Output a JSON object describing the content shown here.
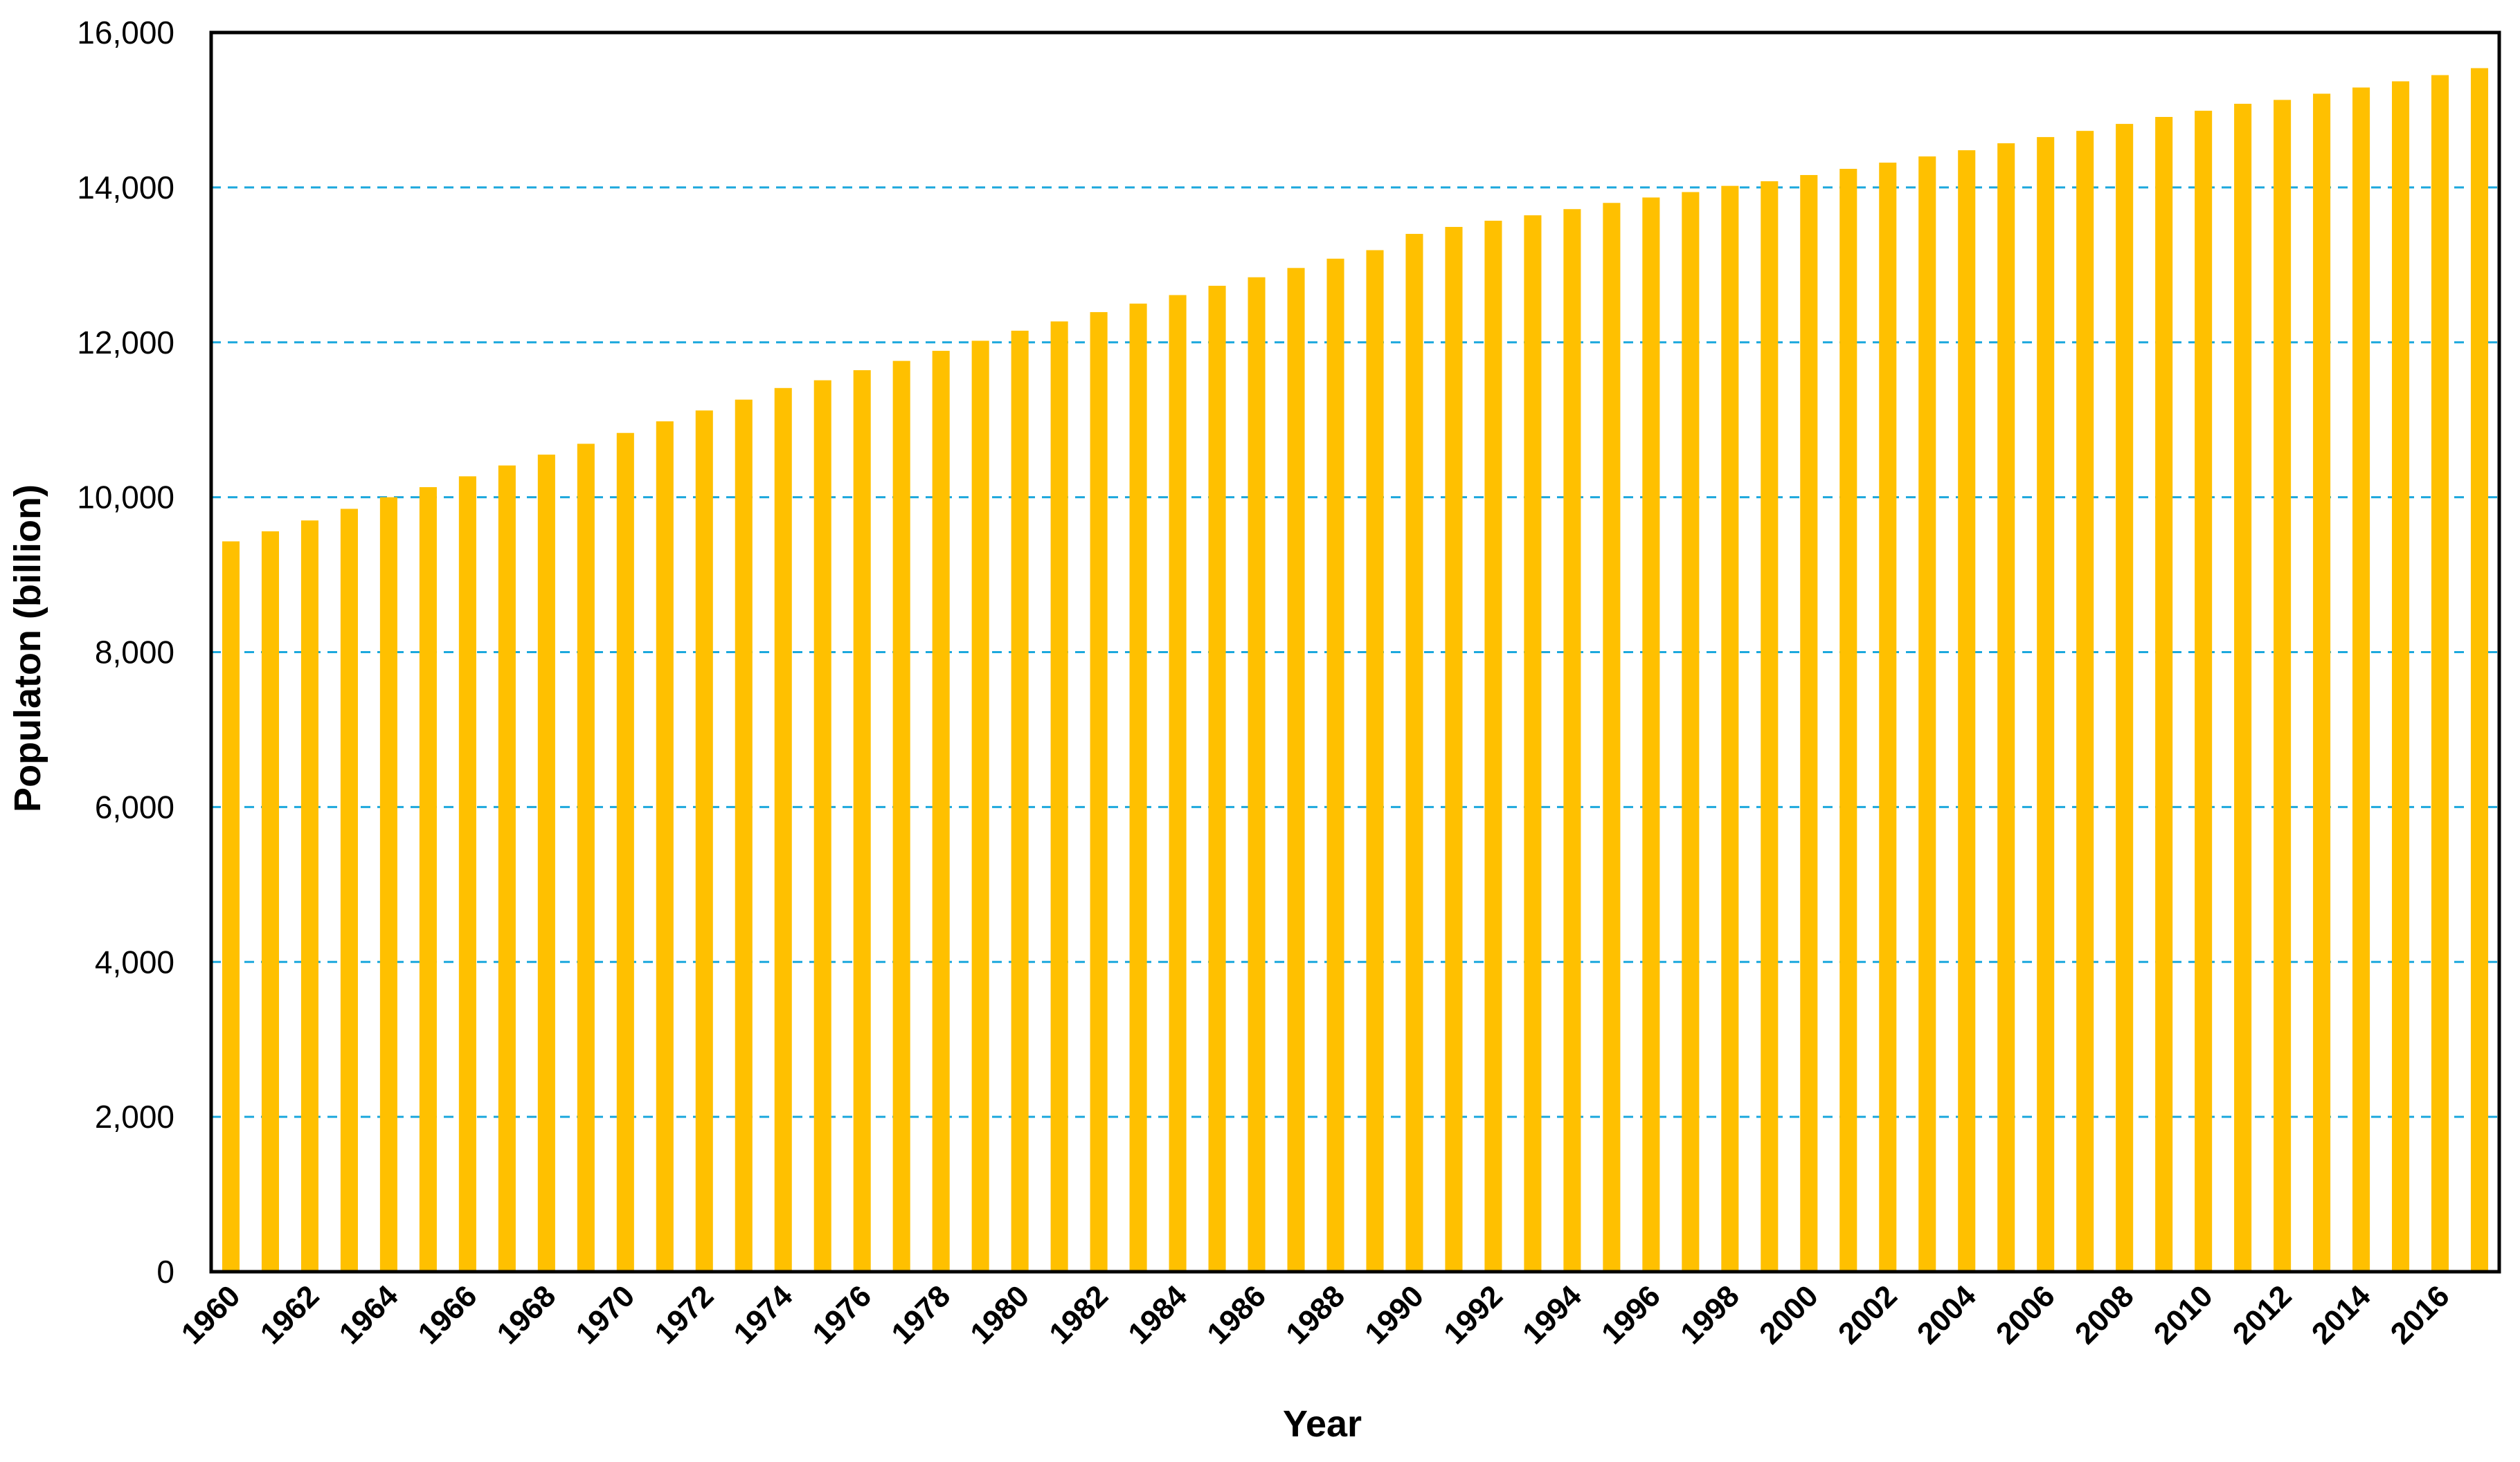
{
  "chart_data": {
    "type": "bar",
    "title": "",
    "xlabel": "Year",
    "ylabel": "Populaton (billion)",
    "ylim": [
      0,
      16000
    ],
    "yticks": [
      0,
      2000,
      4000,
      6000,
      8000,
      10000,
      12000,
      14000,
      16000
    ],
    "ytick_labels": [
      "0",
      "2,000",
      "4,000",
      "6,000",
      "8,000",
      "10,000",
      "12,000",
      "14,000",
      "16,000"
    ],
    "grid": "horizontal dashed",
    "legend": "none",
    "categories": [
      "1960",
      "1961",
      "1962",
      "1963",
      "1964",
      "1965",
      "1966",
      "1967",
      "1968",
      "1969",
      "1970",
      "1971",
      "1972",
      "1973",
      "1974",
      "1975",
      "1976",
      "1977",
      "1978",
      "1979",
      "1980",
      "1981",
      "1982",
      "1983",
      "1984",
      "1985",
      "1986",
      "1987",
      "1988",
      "1989",
      "1990",
      "1991",
      "1992",
      "1993",
      "1994",
      "1995",
      "1996",
      "1997",
      "1998",
      "1999",
      "2000",
      "2001",
      "2002",
      "2003",
      "2004",
      "2005",
      "2006",
      "2007",
      "2008",
      "2009",
      "2010",
      "2011",
      "2012",
      "2013",
      "2014",
      "2015",
      "2016",
      "2017"
    ],
    "xtick_labels": [
      "1960",
      "1962",
      "1964",
      "1966",
      "1968",
      "1970",
      "1972",
      "1974",
      "1976",
      "1978",
      "1980",
      "1982",
      "1984",
      "1986",
      "1988",
      "1990",
      "1992",
      "1994",
      "1996",
      "1998",
      "2000",
      "2002",
      "2004",
      "2006",
      "2008",
      "2010",
      "2012",
      "2014",
      "2016"
    ],
    "values": [
      9430,
      9560,
      9700,
      9850,
      10000,
      10130,
      10270,
      10410,
      10550,
      10690,
      10830,
      10980,
      11120,
      11260,
      11410,
      11510,
      11640,
      11760,
      11890,
      12020,
      12150,
      12270,
      12390,
      12500,
      12610,
      12730,
      12840,
      12960,
      13080,
      13190,
      13400,
      13490,
      13570,
      13640,
      13720,
      13800,
      13870,
      13940,
      14020,
      14080,
      14160,
      14240,
      14320,
      14400,
      14480,
      14570,
      14650,
      14730,
      14820,
      14910,
      14990,
      15080,
      15130,
      15210,
      15290,
      15370,
      15450,
      15540
    ]
  },
  "colors": {
    "bar": "#FFC000",
    "grid": "#1CA8DD",
    "axis": "#000000"
  }
}
